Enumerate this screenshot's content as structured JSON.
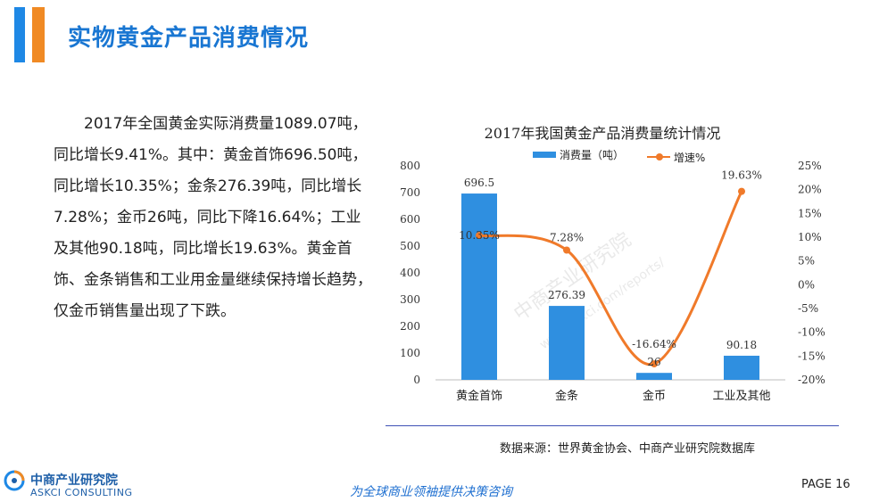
{
  "header": {
    "title": "实物黄金产品消费情况"
  },
  "body_text": "2017年全国黄金实际消费量1089.07吨，同比增长9.41%。其中：黄金首饰696.50吨，同比增长10.35%；金条276.39吨，同比增长7.28%；金币26吨，同比下降16.64%；工业及其他90.18吨，同比增长19.63%。黄金首饰、金条销售和工业用金量继续保持增长趋势，仅金币销售量出现了下跌。",
  "chart_data": {
    "type": "bar",
    "title": "2017年我国黄金产品消费量统计情况",
    "categories": [
      "黄金首饰",
      "金条",
      "金币",
      "工业及其他"
    ],
    "series": [
      {
        "name": "消费量（吨）",
        "type": "bar",
        "axis": "left",
        "values": [
          696.5,
          276.39,
          26,
          90.18
        ],
        "labels": [
          "696.5",
          "276.39",
          "26",
          "90.18"
        ],
        "color": "#2f8fe0"
      },
      {
        "name": "增速%",
        "type": "line",
        "axis": "right",
        "values": [
          10.35,
          7.28,
          -16.64,
          19.63
        ],
        "labels": [
          "10.35%",
          "7.28%",
          "-16.64%",
          "19.63%"
        ],
        "color": "#f07a2a"
      }
    ],
    "y_left": {
      "min": 0,
      "max": 800,
      "ticks": [
        "800",
        "700",
        "600",
        "500",
        "400",
        "300",
        "200",
        "100",
        "0"
      ]
    },
    "y_right": {
      "min": -20,
      "max": 25,
      "ticks": [
        "25%",
        "20%",
        "15%",
        "10%",
        "5%",
        "0%",
        "-5%",
        "-10%",
        "-15%",
        "-20%"
      ]
    },
    "grid": false,
    "legend_position": "top"
  },
  "source": "数据来源：世界黄金协会、中商产业研究院数据库",
  "footer": {
    "logo_cn": "中商产业研究院",
    "logo_en": "ASKCI CONSULTING",
    "slogan": "为全球商业领袖提供决策咨询",
    "page": "PAGE 16"
  },
  "watermark": {
    "line1": "中商产业研究院",
    "line2": "www.askci.com/reports/"
  }
}
